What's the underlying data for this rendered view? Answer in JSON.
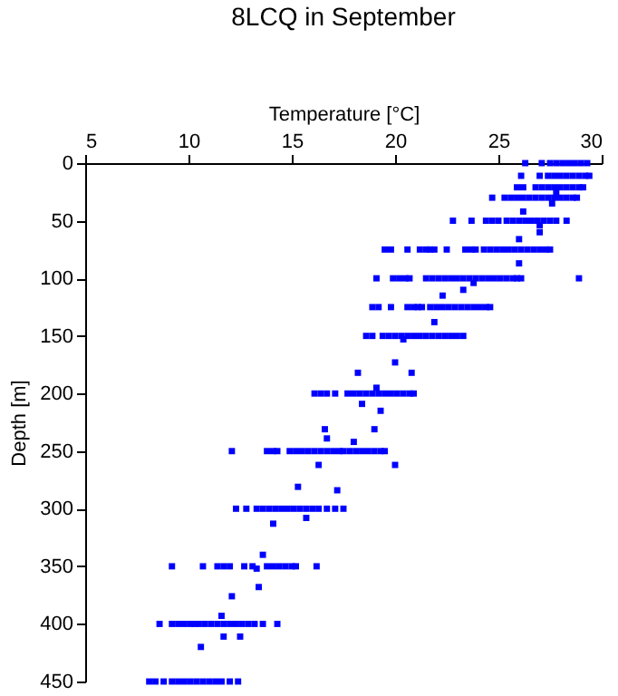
{
  "chart_data": {
    "type": "scatter",
    "title": "8LCQ in September",
    "xlabel": "Temperature [°C]",
    "ylabel": "Depth [m]",
    "xlim": [
      5,
      30
    ],
    "xticks": [
      5,
      10,
      15,
      20,
      25,
      30
    ],
    "ylim": [
      450,
      0
    ],
    "yticks": [
      0,
      50,
      100,
      150,
      200,
      250,
      300,
      350,
      400,
      450
    ],
    "grid": false,
    "marker": "square",
    "legend": false,
    "series": [
      {
        "color": "#0000ff",
        "x": [
          26.3,
          27.1,
          27.5,
          27.8,
          28.1,
          28.4,
          28.7,
          29.0,
          29.3
        ],
        "values": [
          0,
          0,
          0,
          0,
          0,
          0,
          0,
          0,
          0
        ]
      },
      {
        "color": "#0000ff",
        "x": [
          26.1,
          27.0,
          27.4,
          27.7,
          28.0,
          28.3,
          28.6,
          28.9,
          29.2,
          29.4
        ],
        "values": [
          11,
          11,
          11,
          11,
          11,
          11,
          11,
          11,
          11,
          11
        ]
      },
      {
        "color": "#0000ff",
        "x": [
          25.9,
          26.2,
          26.8,
          27.1,
          27.4,
          27.7,
          28.0,
          28.3,
          28.6,
          28.9,
          29.1
        ],
        "values": [
          21,
          21,
          21,
          21,
          21,
          21,
          21,
          21,
          21,
          21,
          21
        ]
      },
      {
        "color": "#0000ff",
        "x": [
          24.7,
          25.3,
          25.6,
          25.9,
          26.2,
          26.5,
          26.8,
          27.1,
          27.4,
          27.7,
          28.0,
          28.3,
          28.6,
          28.8
        ],
        "values": [
          30,
          30,
          30,
          30,
          30,
          30,
          30,
          30,
          30,
          30,
          30,
          30,
          30,
          30
        ]
      },
      {
        "color": "#0000ff",
        "x": [
          22.8,
          23.7,
          24.4,
          24.7,
          25.0,
          25.4,
          25.7,
          26.0,
          26.3,
          26.6,
          26.9,
          27.2,
          27.5,
          27.8,
          28.3
        ],
        "values": [
          50,
          50,
          50,
          50,
          50,
          50,
          50,
          50,
          50,
          50,
          50,
          50,
          50,
          50,
          50
        ]
      },
      {
        "color": "#0000ff",
        "x": [
          19.5,
          19.8,
          20.6,
          21.2,
          21.5,
          21.7,
          21.9,
          22.5,
          23.4,
          23.7,
          23.9,
          24.3,
          24.6,
          24.9,
          25.2,
          25.5,
          25.8,
          26.1,
          26.4,
          26.7,
          27.0,
          27.3,
          27.5
        ],
        "values": [
          75,
          75,
          75,
          75,
          75,
          75,
          75,
          75,
          75,
          75,
          75,
          75,
          75,
          75,
          75,
          75,
          75,
          75,
          75,
          75,
          75,
          75,
          75
        ]
      },
      {
        "color": "#0000ff",
        "x": [
          19.1,
          19.9,
          20.2,
          20.5,
          20.7,
          21.5,
          21.8,
          22.1,
          22.4,
          22.7,
          23.0,
          23.3,
          23.6,
          23.9,
          24.2,
          24.5,
          24.8,
          25.1,
          25.4,
          25.7,
          25.9,
          26.1,
          28.9
        ],
        "values": [
          100,
          100,
          100,
          100,
          100,
          100,
          100,
          100,
          100,
          100,
          100,
          100,
          100,
          100,
          100,
          100,
          100,
          100,
          100,
          100,
          100,
          100,
          100
        ]
      },
      {
        "color": "#0000ff",
        "x": [
          18.9,
          19.2,
          19.8,
          20.6,
          20.9,
          21.1,
          21.3,
          21.7,
          22.0,
          22.3,
          22.6,
          22.9,
          23.2,
          23.5,
          23.8,
          24.1,
          24.4,
          24.6
        ],
        "values": [
          125,
          125,
          125,
          125,
          125,
          125,
          125,
          125,
          125,
          125,
          125,
          125,
          125,
          125,
          125,
          125,
          125,
          125
        ]
      },
      {
        "color": "#0000ff",
        "x": [
          18.6,
          18.9,
          19.4,
          19.7,
          20.0,
          20.3,
          20.6,
          20.9,
          21.2,
          21.5,
          21.8,
          22.1,
          22.4,
          22.7,
          23.0,
          23.3
        ],
        "values": [
          150,
          150,
          150,
          150,
          150,
          150,
          150,
          150,
          150,
          150,
          150,
          150,
          150,
          150,
          150,
          150
        ]
      },
      {
        "color": "#0000ff",
        "x": [
          16.1,
          16.4,
          16.7,
          17.1,
          17.7,
          18.0,
          18.3,
          18.6,
          18.9,
          19.2,
          19.5,
          19.8,
          20.1,
          20.4,
          20.7,
          20.9
        ],
        "values": [
          200,
          200,
          200,
          200,
          200,
          200,
          200,
          200,
          200,
          200,
          200,
          200,
          200,
          200,
          200,
          200
        ]
      },
      {
        "color": "#0000ff",
        "x": [
          12.1,
          13.8,
          14.1,
          14.3,
          14.9,
          15.2,
          15.5,
          15.8,
          16.1,
          16.4,
          16.7,
          17.0,
          17.3,
          17.5,
          17.8,
          18.1,
          18.4,
          18.7,
          19.0,
          19.3,
          19.5
        ],
        "values": [
          250,
          250,
          250,
          250,
          250,
          250,
          250,
          250,
          250,
          250,
          250,
          250,
          250,
          250,
          250,
          250,
          250,
          250,
          250,
          250,
          250
        ]
      },
      {
        "color": "#0000ff",
        "x": [
          12.3,
          12.8,
          13.3,
          13.6,
          13.9,
          14.2,
          14.5,
          14.8,
          15.1,
          15.4,
          15.7,
          16.0,
          16.3,
          16.7,
          17.1,
          17.5
        ],
        "values": [
          300,
          300,
          300,
          300,
          300,
          300,
          300,
          300,
          300,
          300,
          300,
          300,
          300,
          300,
          300,
          300
        ]
      },
      {
        "color": "#0000ff",
        "x": [
          9.2,
          10.7,
          11.4,
          11.7,
          12.0,
          12.7,
          13.1,
          13.8,
          14.1,
          14.4,
          14.7,
          15.0,
          15.2,
          16.2
        ],
        "values": [
          350,
          350,
          350,
          350,
          350,
          350,
          350,
          350,
          350,
          350,
          350,
          350,
          350,
          350
        ]
      },
      {
        "color": "#0000ff",
        "x": [
          8.6,
          9.2,
          9.5,
          9.8,
          10.1,
          10.3,
          10.5,
          10.8,
          11.1,
          11.4,
          11.7,
          12.0,
          12.3,
          12.6,
          12.9,
          13.2,
          13.6,
          14.3
        ],
        "values": [
          400,
          400,
          400,
          400,
          400,
          400,
          400,
          400,
          400,
          400,
          400,
          400,
          400,
          400,
          400,
          400,
          400,
          400
        ]
      },
      {
        "color": "#0000ff",
        "x": [
          8.1,
          8.4,
          8.8,
          9.2,
          9.5,
          9.8,
          10.1,
          10.4,
          10.7,
          11.0,
          11.3,
          11.6,
          12.0,
          12.4
        ],
        "values": [
          450,
          450,
          450,
          450,
          450,
          450,
          450,
          450,
          450,
          450,
          450,
          450,
          450,
          450
        ]
      },
      {
        "color": "#0000ff",
        "x": [
          27.8,
          27.6,
          26.2,
          27.0,
          27.0,
          26.0,
          26.0,
          23.8,
          23.3,
          22.3,
          21.9,
          20.4,
          20.0,
          18.2,
          20.8,
          19.1,
          18.4,
          19.3,
          16.6,
          19.0,
          16.7,
          18.0,
          16.3,
          20.0,
          15.3,
          17.2,
          15.7,
          14.1,
          13.6,
          13.3,
          13.4,
          12.1,
          11.6,
          11.7,
          12.5,
          10.6
        ],
        "values": [
          25,
          35,
          42,
          54,
          60,
          66,
          87,
          104,
          110,
          115,
          138,
          153,
          173,
          182,
          182,
          195,
          209,
          215,
          231,
          231,
          239,
          242,
          262,
          262,
          281,
          284,
          308,
          313,
          340,
          352,
          368,
          376,
          393,
          411,
          411,
          420
        ]
      }
    ]
  }
}
